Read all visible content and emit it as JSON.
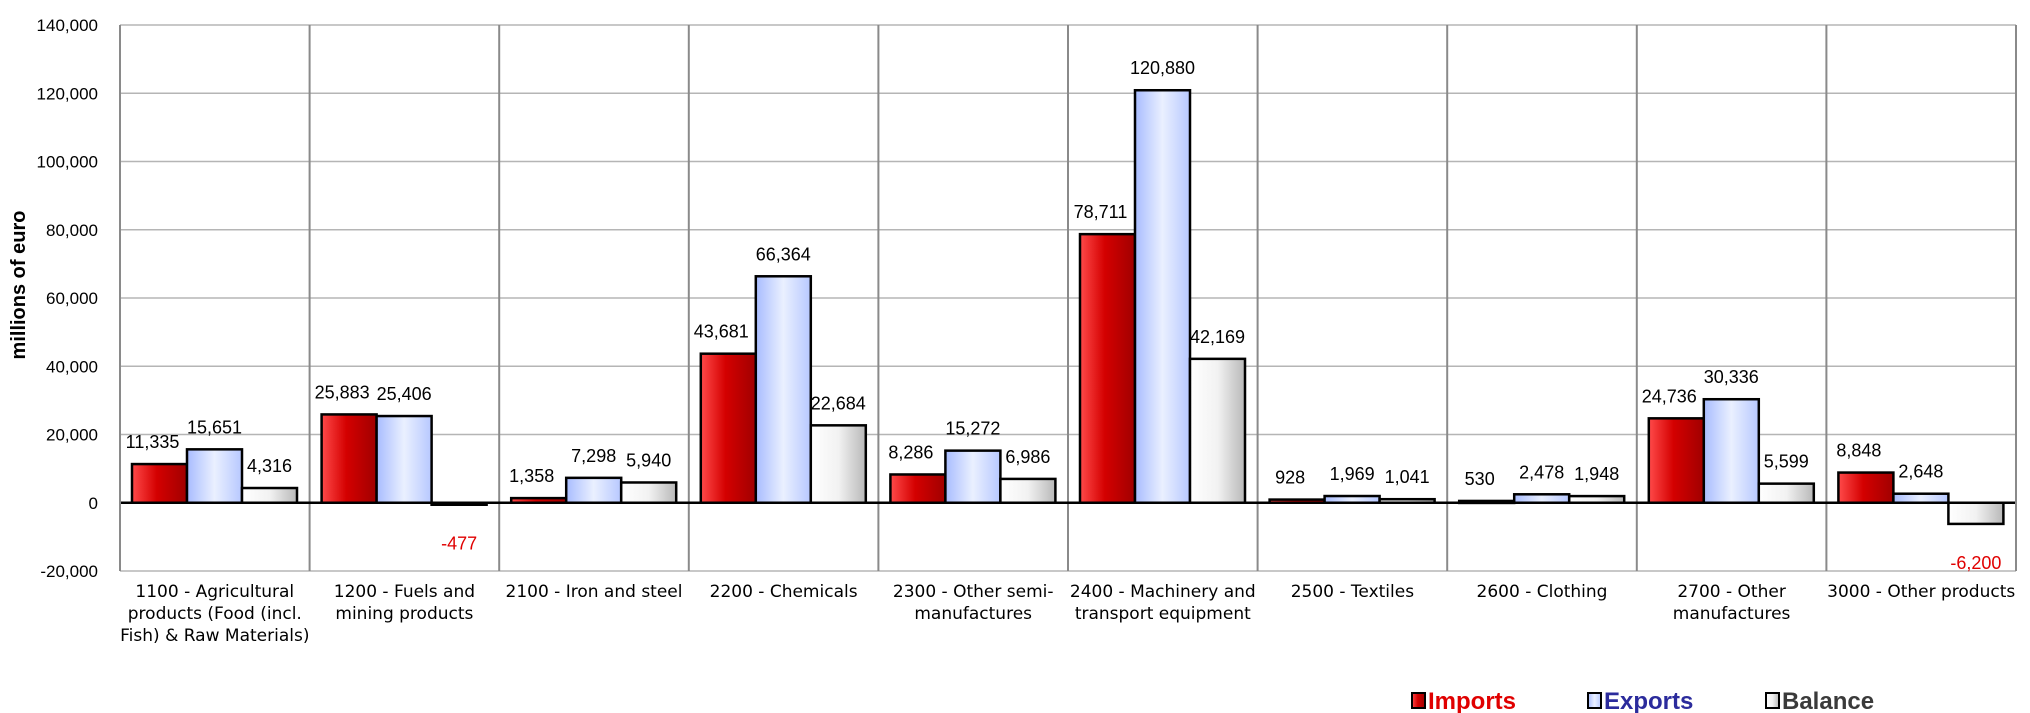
{
  "chart_data": {
    "type": "bar",
    "title": "",
    "xlabel": "",
    "ylabel": "millions of euro",
    "ylim": [
      -20000,
      140000
    ],
    "yticks": [
      -20000,
      0,
      20000,
      40000,
      60000,
      80000,
      100000,
      120000,
      140000
    ],
    "ytick_labels": [
      "-20,000",
      "0",
      "20,000",
      "40,000",
      "60,000",
      "80,000",
      "100,000",
      "120,000",
      "140,000"
    ],
    "grid": true,
    "legend_position": "bottom-right",
    "categories": [
      "1100 - Agricultural products (Food (incl. Fish) & Raw Materials)",
      "1200 - Fuels and mining products",
      "2100 - Iron and steel",
      "2200 - Chemicals",
      "2300 - Other semi-manufactures",
      "2400 - Machinery and transport equipment",
      "2500 - Textiles",
      "2600 - Clothing",
      "2700 - Other manufactures",
      "3000 - Other products"
    ],
    "category_lines": [
      [
        "1100 - Agricultural",
        "products (Food (incl.",
        "Fish) & Raw Materials)"
      ],
      [
        "1200 - Fuels and",
        "mining products"
      ],
      [
        "2100 - Iron and steel"
      ],
      [
        "2200 - Chemicals"
      ],
      [
        "2300 - Other semi-",
        "manufactures"
      ],
      [
        "2400 - Machinery and",
        "transport equipment"
      ],
      [
        "2500 - Textiles"
      ],
      [
        "2600 - Clothing"
      ],
      [
        "2700 - Other",
        "manufactures"
      ],
      [
        "3000 - Other products"
      ]
    ],
    "series": [
      {
        "name": "Imports",
        "color": "#d40000",
        "legend_color": "#e00000",
        "values": [
          11335,
          25883,
          1358,
          43681,
          8286,
          78711,
          928,
          530,
          24736,
          8848
        ],
        "labels": [
          "11,335",
          "25,883",
          "1,358",
          "43,681",
          "8,286",
          "78,711",
          "928",
          "530",
          "24,736",
          "8,848"
        ]
      },
      {
        "name": "Exports",
        "color": "#c6d4ff",
        "legend_color": "#2b2b9c",
        "values": [
          15651,
          25406,
          7298,
          66364,
          15272,
          120880,
          1969,
          2478,
          30336,
          2648
        ],
        "labels": [
          "15,651",
          "25,406",
          "7,298",
          "66,364",
          "15,272",
          "120,880",
          "1,969",
          "2,478",
          "30,336",
          "2,648"
        ]
      },
      {
        "name": "Balance",
        "color": "#e6e6e6",
        "legend_color": "#3a3a3a",
        "values": [
          4316,
          -477,
          5940,
          22684,
          6986,
          42169,
          1041,
          1948,
          5599,
          -6200
        ],
        "labels": [
          "4,316",
          "-477",
          "5,940",
          "22,684",
          "6,986",
          "42,169",
          "1,041",
          "1,948",
          "5,599",
          "-6,200"
        ]
      }
    ]
  }
}
